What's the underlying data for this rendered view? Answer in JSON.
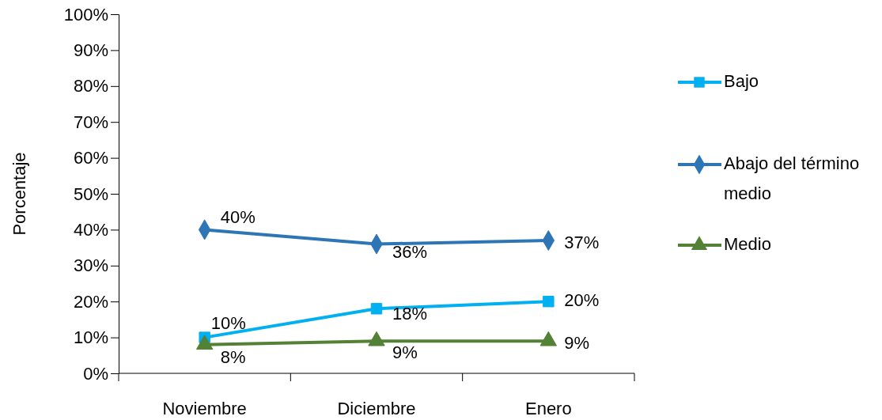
{
  "chart_data": {
    "type": "line",
    "ylabel": "Porcentaje",
    "categories": [
      "Noviembre",
      "Diciembre",
      "Enero"
    ],
    "series": [
      {
        "name": "Bajo",
        "color": "#00b0f0",
        "marker": "square",
        "values": [
          10,
          18,
          20
        ],
        "value_labels": [
          "10%",
          "18%",
          "20%"
        ]
      },
      {
        "name": "Abajo del término medio",
        "color": "#2e75b6",
        "marker": "diamond",
        "values": [
          40,
          36,
          37
        ],
        "value_labels": [
          "40%",
          "36%",
          "37%"
        ]
      },
      {
        "name": "Medio",
        "color": "#538135",
        "marker": "triangle",
        "values": [
          8,
          9,
          9
        ],
        "value_labels": [
          "8%",
          "9%",
          "9%"
        ]
      }
    ],
    "ylim": [
      0,
      100
    ],
    "yticks": [
      {
        "value": 0,
        "label": "0%"
      },
      {
        "value": 10,
        "label": "10%"
      },
      {
        "value": 20,
        "label": "20%"
      },
      {
        "value": 30,
        "label": "30%"
      },
      {
        "value": 40,
        "label": "40%"
      },
      {
        "value": 50,
        "label": "50%"
      },
      {
        "value": 60,
        "label": "60%"
      },
      {
        "value": 70,
        "label": "70%"
      },
      {
        "value": 80,
        "label": "80%"
      },
      {
        "value": 90,
        "label": "90%"
      },
      {
        "value": 100,
        "label": "100%"
      }
    ],
    "grid": false,
    "legend": "right",
    "line_style": "solid"
  }
}
